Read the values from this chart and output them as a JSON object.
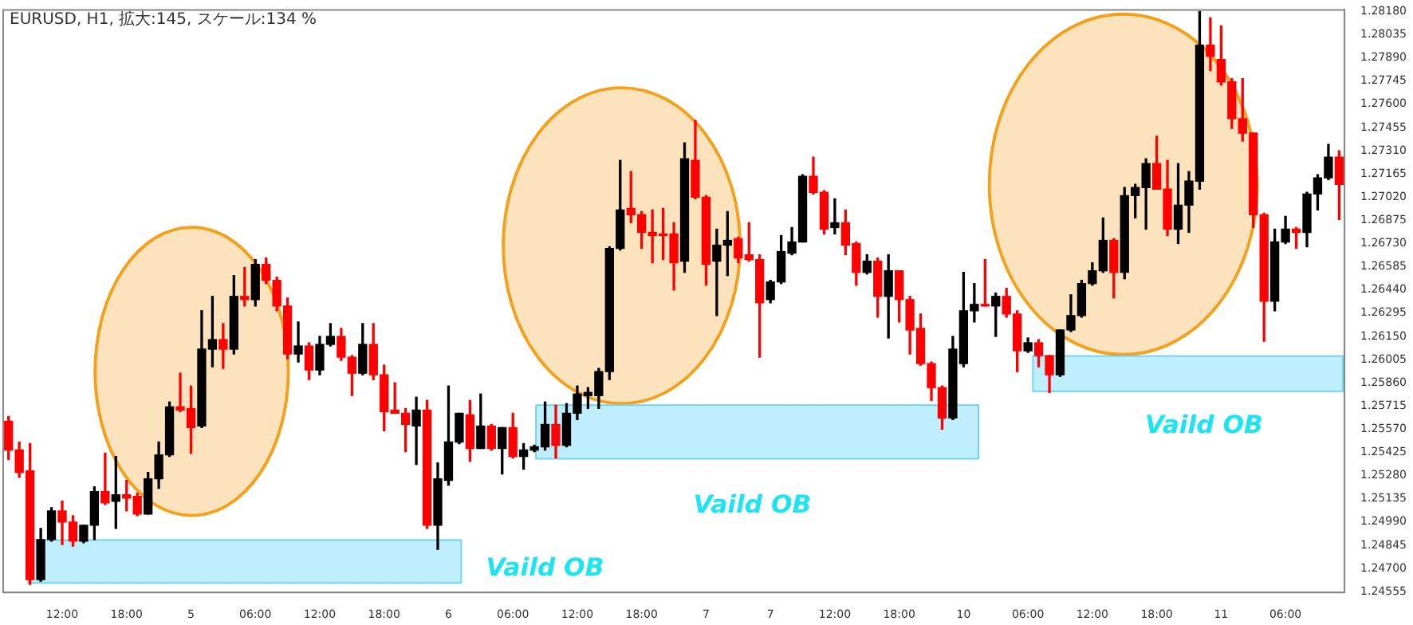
{
  "chart_data": {
    "type": "candlestick",
    "title": "EURUSD, H1, 拡大:145, スケール:134 %",
    "annotations": [
      "Vaild OB",
      "Vaild OB",
      "Vaild OB"
    ],
    "categories": [
      null,
      null,
      null,
      null,
      null,
      "12:00",
      null,
      null,
      null,
      null,
      null,
      "18:00",
      null,
      null,
      null,
      null,
      null,
      "5",
      null,
      null,
      null,
      null,
      null,
      "06:00",
      null,
      null,
      null,
      null,
      null,
      "12:00",
      null,
      null,
      null,
      null,
      null,
      "18:00",
      null,
      null,
      null,
      null,
      null,
      "6",
      null,
      null,
      null,
      null,
      null,
      "06:00",
      null,
      null,
      null,
      null,
      null,
      "12:00",
      null,
      null,
      null,
      null,
      null,
      "18:00",
      null,
      null,
      null,
      null,
      null,
      "7",
      null,
      null,
      null,
      null,
      null,
      "7",
      null,
      null,
      null,
      null,
      null,
      "12:00",
      null,
      null,
      null,
      null,
      null,
      "18:00",
      null,
      null,
      null,
      null,
      null,
      "10",
      null,
      null,
      null,
      null,
      null,
      "06:00",
      null,
      null,
      null,
      null,
      null,
      "12:00",
      null,
      null,
      null,
      null,
      null,
      "18:00",
      null,
      null,
      null,
      null,
      null,
      "11",
      null,
      null,
      null,
      null,
      null,
      "06:00",
      null,
      null,
      null,
      null,
      null
    ],
    "ohlc": [
      [
        1.2562,
        1.2565,
        1.2538,
        1.2544
      ],
      [
        1.2544,
        1.2549,
        1.2527,
        1.253
      ],
      [
        1.2531,
        1.2548,
        1.246,
        1.2463
      ],
      [
        1.2463,
        1.2495,
        1.2462,
        1.2488
      ],
      [
        1.2488,
        1.2508,
        1.2487,
        1.2506
      ],
      [
        1.2506,
        1.2512,
        1.2485,
        1.2499
      ],
      [
        1.2499,
        1.2503,
        1.2484,
        1.2487
      ],
      [
        1.2487,
        1.2497,
        1.2486,
        1.2497
      ],
      [
        1.2497,
        1.2521,
        1.2488,
        1.2518
      ],
      [
        1.2518,
        1.2542,
        1.251,
        1.2511
      ],
      [
        1.2512,
        1.254,
        1.2495,
        1.2516
      ],
      [
        1.2516,
        1.2525,
        1.2506,
        1.2514
      ],
      [
        1.2515,
        1.2517,
        1.2503,
        1.2504
      ],
      [
        1.2504,
        1.253,
        1.2504,
        1.2526
      ],
      [
        1.2526,
        1.2549,
        1.252,
        1.2541
      ],
      [
        1.2541,
        1.2574,
        1.254,
        1.2571
      ],
      [
        1.2571,
        1.2592,
        1.2568,
        1.2569
      ],
      [
        1.257,
        1.2584,
        1.2542,
        1.2558
      ],
      [
        1.2559,
        1.2631,
        1.2558,
        1.2607
      ],
      [
        1.2607,
        1.264,
        1.2596,
        1.2613
      ],
      [
        1.2613,
        1.2623,
        1.2595,
        1.2607
      ],
      [
        1.2607,
        1.2653,
        1.2604,
        1.264
      ],
      [
        1.264,
        1.2658,
        1.2634,
        1.2638
      ],
      [
        1.2638,
        1.2663,
        1.2634,
        1.266
      ],
      [
        1.266,
        1.2664,
        1.2648,
        1.265
      ],
      [
        1.265,
        1.2652,
        1.2631,
        1.2634
      ],
      [
        1.2634,
        1.2639,
        1.2601,
        1.2604
      ],
      [
        1.2604,
        1.2624,
        1.2599,
        1.2609
      ],
      [
        1.2609,
        1.2611,
        1.2588,
        1.2594
      ],
      [
        1.2594,
        1.2615,
        1.2591,
        1.261
      ],
      [
        1.261,
        1.2623,
        1.2609,
        1.2615
      ],
      [
        1.2615,
        1.262,
        1.26,
        1.2602
      ],
      [
        1.2602,
        1.2603,
        1.2578,
        1.2592
      ],
      [
        1.2592,
        1.2623,
        1.2591,
        1.261
      ],
      [
        1.261,
        1.2623,
        1.2588,
        1.2591
      ],
      [
        1.2591,
        1.2597,
        1.2556,
        1.2568
      ],
      [
        1.2569,
        1.2586,
        1.2567,
        1.2567
      ],
      [
        1.2567,
        1.257,
        1.2543,
        1.256
      ],
      [
        1.2559,
        1.2577,
        1.2535,
        1.2569
      ],
      [
        1.2569,
        1.2575,
        1.2495,
        1.2497
      ],
      [
        1.2497,
        1.2536,
        1.2482,
        1.2526
      ],
      [
        1.2525,
        1.2584,
        1.2522,
        1.2549
      ],
      [
        1.2549,
        1.2567,
        1.2548,
        1.2567
      ],
      [
        1.2566,
        1.2575,
        1.2537,
        1.2545
      ],
      [
        1.2545,
        1.2579,
        1.2545,
        1.2559
      ],
      [
        1.2559,
        1.256,
        1.2544,
        1.2545
      ],
      [
        1.2545,
        1.2558,
        1.2529,
        1.2558
      ],
      [
        1.2558,
        1.2567,
        1.2539,
        1.254
      ],
      [
        1.254,
        1.2548,
        1.2532,
        1.2544
      ],
      [
        1.2544,
        1.2547,
        1.2543,
        1.2546
      ],
      [
        1.2546,
        1.2574,
        1.2544,
        1.256
      ],
      [
        1.256,
        1.2572,
        1.2539,
        1.2547
      ],
      [
        1.2547,
        1.2573,
        1.2546,
        1.2567
      ],
      [
        1.2567,
        1.2584,
        1.2563,
        1.2579
      ],
      [
        1.2578,
        1.2583,
        1.257,
        1.258
      ],
      [
        1.2578,
        1.2595,
        1.257,
        1.2593
      ],
      [
        1.2593,
        1.2671,
        1.2588,
        1.267
      ],
      [
        1.267,
        1.2725,
        1.2669,
        1.2694
      ],
      [
        1.2695,
        1.2718,
        1.2686,
        1.2691
      ],
      [
        1.2691,
        1.2693,
        1.267,
        1.268
      ],
      [
        1.268,
        1.2694,
        1.2661,
        1.2678
      ],
      [
        1.2679,
        1.2695,
        1.2663,
        1.2678
      ],
      [
        1.2679,
        1.2686,
        1.2644,
        1.2661
      ],
      [
        1.2662,
        1.2736,
        1.2655,
        1.2726
      ],
      [
        1.2725,
        1.275,
        1.2701,
        1.2702
      ],
      [
        1.2702,
        1.2703,
        1.2647,
        1.266
      ],
      [
        1.2662,
        1.2682,
        1.2628,
        1.2672
      ],
      [
        1.2672,
        1.2693,
        1.2653,
        1.2675
      ],
      [
        1.2676,
        1.2677,
        1.2661,
        1.2664
      ],
      [
        1.2666,
        1.2686,
        1.2662,
        1.2663
      ],
      [
        1.2663,
        1.2666,
        1.2602,
        1.2636
      ],
      [
        1.2638,
        1.265,
        1.2636,
        1.2649
      ],
      [
        1.2649,
        1.2678,
        1.2648,
        1.2668
      ],
      [
        1.2667,
        1.2683,
        1.2666,
        1.2674
      ],
      [
        1.2674,
        1.2716,
        1.2674,
        1.2715
      ],
      [
        1.2715,
        1.2727,
        1.2704,
        1.2705
      ],
      [
        1.2705,
        1.2706,
        1.2679,
        1.2682
      ],
      [
        1.2683,
        1.2701,
        1.2679,
        1.2686
      ],
      [
        1.2686,
        1.2694,
        1.2666,
        1.2672
      ],
      [
        1.2673,
        1.2674,
        1.2647,
        1.2655
      ],
      [
        1.2655,
        1.2666,
        1.2654,
        1.2662
      ],
      [
        1.2662,
        1.2664,
        1.2627,
        1.264
      ],
      [
        1.264,
        1.2666,
        1.2614,
        1.2656
      ],
      [
        1.2656,
        1.2656,
        1.2624,
        1.2638
      ],
      [
        1.2638,
        1.264,
        1.2604,
        1.2619
      ],
      [
        1.262,
        1.2629,
        1.2597,
        1.2598
      ],
      [
        1.2598,
        1.2599,
        1.2575,
        1.2583
      ],
      [
        1.2583,
        1.2584,
        1.2557,
        1.2564
      ],
      [
        1.2564,
        1.2615,
        1.2563,
        1.2607
      ],
      [
        1.2598,
        1.2655,
        1.2596,
        1.2631
      ],
      [
        1.2631,
        1.2648,
        1.2624,
        1.2635
      ],
      [
        1.2635,
        1.2663,
        1.2634,
        1.2634
      ],
      [
        1.2634,
        1.2642,
        1.2615,
        1.264
      ],
      [
        1.264,
        1.2645,
        1.2627,
        1.2629
      ],
      [
        1.2629,
        1.2631,
        1.2593,
        1.2606
      ],
      [
        1.2606,
        1.2614,
        1.2605,
        1.2611
      ],
      [
        1.2611,
        1.2613,
        1.2596,
        1.2603
      ],
      [
        1.2603,
        1.2603,
        1.258,
        1.2591
      ],
      [
        1.2591,
        1.2619,
        1.259,
        1.2619
      ],
      [
        1.2619,
        1.2641,
        1.2618,
        1.2628
      ],
      [
        1.2628,
        1.265,
        1.2627,
        1.2648
      ],
      [
        1.2648,
        1.2661,
        1.2647,
        1.2656
      ],
      [
        1.2656,
        1.2689,
        1.2655,
        1.2675
      ],
      [
        1.2675,
        1.2676,
        1.2639,
        1.2655
      ],
      [
        1.2655,
        1.2708,
        1.2651,
        1.2703
      ],
      [
        1.2703,
        1.271,
        1.2689,
        1.2708
      ],
      [
        1.2708,
        1.2726,
        1.2682,
        1.2723
      ],
      [
        1.2723,
        1.274,
        1.2707,
        1.2707
      ],
      [
        1.2707,
        1.2725,
        1.2678,
        1.2682
      ],
      [
        1.2682,
        1.2723,
        1.2673,
        1.2697
      ],
      [
        1.2697,
        1.2718,
        1.268,
        1.2712
      ],
      [
        1.2712,
        1.2818,
        1.2707,
        1.2797
      ],
      [
        1.2797,
        1.2814,
        1.2781,
        1.279
      ],
      [
        1.2788,
        1.2809,
        1.2772,
        1.2774
      ],
      [
        1.2774,
        1.2776,
        1.2745,
        1.2751
      ],
      [
        1.2751,
        1.2776,
        1.2737,
        1.2742
      ],
      [
        1.2742,
        1.2742,
        1.2683,
        1.2691
      ],
      [
        1.2691,
        1.2692,
        1.2612,
        1.2637
      ],
      [
        1.2637,
        1.2682,
        1.2631,
        1.2674
      ],
      [
        1.2674,
        1.269,
        1.2673,
        1.2682
      ],
      [
        1.2682,
        1.2683,
        1.267,
        1.268
      ],
      [
        1.268,
        1.2705,
        1.2671,
        1.2704
      ],
      [
        1.2704,
        1.2716,
        1.2694,
        1.2714
      ],
      [
        1.2714,
        1.2735,
        1.2713,
        1.2727
      ],
      [
        1.2727,
        1.2731,
        1.2688,
        1.271
      ]
    ],
    "colors": [
      "#ff0000",
      "#ff0000",
      "#ff0000",
      "#000000",
      "#000000",
      "#ff0000",
      "#ff0000",
      "#000000",
      "#000000",
      "#ff0000",
      "#000000",
      "#ff0000",
      "#ff0000",
      "#000000",
      "#000000",
      "#000000",
      "#ff0000",
      "#ff0000",
      "#000000",
      "#000000",
      "#ff0000",
      "#000000",
      "#ff0000",
      "#000000",
      "#ff0000",
      "#ff0000",
      "#ff0000",
      "#000000",
      "#ff0000",
      "#000000",
      "#000000",
      "#ff0000",
      "#ff0000",
      "#000000",
      "#ff0000",
      "#ff0000",
      "#ff0000",
      "#ff0000",
      "#000000",
      "#ff0000",
      "#000000",
      "#000000",
      "#000000",
      "#ff0000",
      "#000000",
      "#ff0000",
      "#000000",
      "#ff0000",
      "#000000",
      "#000000",
      "#000000",
      "#ff0000",
      "#000000",
      "#000000",
      "#000000",
      "#000000",
      "#000000",
      "#000000",
      "#ff0000",
      "#ff0000",
      "#ff0000",
      "#ff0000",
      "#ff0000",
      "#000000",
      "#ff0000",
      "#ff0000",
      "#000000",
      "#000000",
      "#ff0000",
      "#ff0000",
      "#ff0000",
      "#000000",
      "#000000",
      "#000000",
      "#000000",
      "#ff0000",
      "#ff0000",
      "#000000",
      "#ff0000",
      "#ff0000",
      "#000000",
      "#ff0000",
      "#000000",
      "#ff0000",
      "#ff0000",
      "#ff0000",
      "#ff0000",
      "#ff0000",
      "#000000",
      "#000000",
      "#000000",
      "#ff0000",
      "#000000",
      "#ff0000",
      "#ff0000",
      "#000000",
      "#ff0000",
      "#ff0000",
      "#000000",
      "#000000",
      "#000000",
      "#000000",
      "#000000",
      "#ff0000",
      "#000000",
      "#000000",
      "#000000",
      "#ff0000",
      "#ff0000",
      "#000000",
      "#000000",
      "#000000",
      "#ff0000",
      "#ff0000",
      "#ff0000",
      "#ff0000",
      "#ff0000",
      "#ff0000",
      "#000000",
      "#000000",
      "#ff0000",
      "#000000",
      "#000000",
      "#000000",
      "#ff0000"
    ],
    "ylim": [
      1.2455,
      1.2819
    ],
    "yticks": [
      {
        "value": 1.24555,
        "label": "1.24555"
      },
      {
        "value": 1.247,
        "label": "1.24700"
      },
      {
        "value": 1.24845,
        "label": "1.24845"
      },
      {
        "value": 1.2499,
        "label": "1.24990"
      },
      {
        "value": 1.25135,
        "label": "1.25135"
      },
      {
        "value": 1.2528,
        "label": "1.25280"
      },
      {
        "value": 1.25425,
        "label": "1.25425"
      },
      {
        "value": 1.2557,
        "label": "1.25570"
      },
      {
        "value": 1.25715,
        "label": "1.25715"
      },
      {
        "value": 1.2586,
        "label": "1.25860"
      },
      {
        "value": 1.26005,
        "label": "1.26005"
      },
      {
        "value": 1.2615,
        "label": "1.26150"
      },
      {
        "value": 1.26295,
        "label": "1.26295"
      },
      {
        "value": 1.2644,
        "label": "1.26440"
      },
      {
        "value": 1.26585,
        "label": "1.26585"
      },
      {
        "value": 1.2673,
        "label": "1.26730"
      },
      {
        "value": 1.26875,
        "label": "1.26875"
      },
      {
        "value": 1.2702,
        "label": "1.27020"
      },
      {
        "value": 1.27165,
        "label": "1.27165"
      },
      {
        "value": 1.2731,
        "label": "1.27310"
      },
      {
        "value": 1.27455,
        "label": "1.27455"
      },
      {
        "value": 1.276,
        "label": "1.27600"
      },
      {
        "value": 1.27745,
        "label": "1.27745"
      },
      {
        "value": 1.2789,
        "label": "1.27890"
      },
      {
        "value": 1.28035,
        "label": "1.28035"
      },
      {
        "value": 1.2818,
        "label": "1.28180"
      }
    ]
  }
}
